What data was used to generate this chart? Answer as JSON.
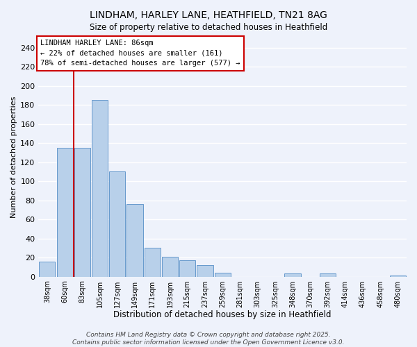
{
  "title": "LINDHAM, HARLEY LANE, HEATHFIELD, TN21 8AG",
  "subtitle": "Size of property relative to detached houses in Heathfield",
  "xlabel": "Distribution of detached houses by size in Heathfield",
  "ylabel": "Number of detached properties",
  "bar_labels": [
    "38sqm",
    "60sqm",
    "83sqm",
    "105sqm",
    "127sqm",
    "149sqm",
    "171sqm",
    "193sqm",
    "215sqm",
    "237sqm",
    "259sqm",
    "281sqm",
    "303sqm",
    "325sqm",
    "348sqm",
    "370sqm",
    "392sqm",
    "414sqm",
    "436sqm",
    "458sqm",
    "480sqm"
  ],
  "bar_values": [
    16,
    135,
    135,
    185,
    110,
    76,
    30,
    21,
    17,
    12,
    4,
    0,
    0,
    0,
    3,
    0,
    3,
    0,
    0,
    0,
    1
  ],
  "bar_color": "#b8d0ea",
  "bar_edge_color": "#6699cc",
  "vline_color": "#cc0000",
  "annotation_text_line1": "LINDHAM HARLEY LANE: 86sqm",
  "annotation_text_line2": "← 22% of detached houses are smaller (161)",
  "annotation_text_line3": "78% of semi-detached houses are larger (577) →",
  "ylim": [
    0,
    250
  ],
  "yticks": [
    0,
    20,
    40,
    60,
    80,
    100,
    120,
    140,
    160,
    180,
    200,
    220,
    240
  ],
  "footer_line1": "Contains HM Land Registry data © Crown copyright and database right 2025.",
  "footer_line2": "Contains public sector information licensed under the Open Government Licence v3.0.",
  "bg_color": "#eef2fb",
  "plot_bg_color": "#eef2fb",
  "grid_color": "#ffffff",
  "title_fontsize": 10,
  "footer_fontsize": 6.5
}
